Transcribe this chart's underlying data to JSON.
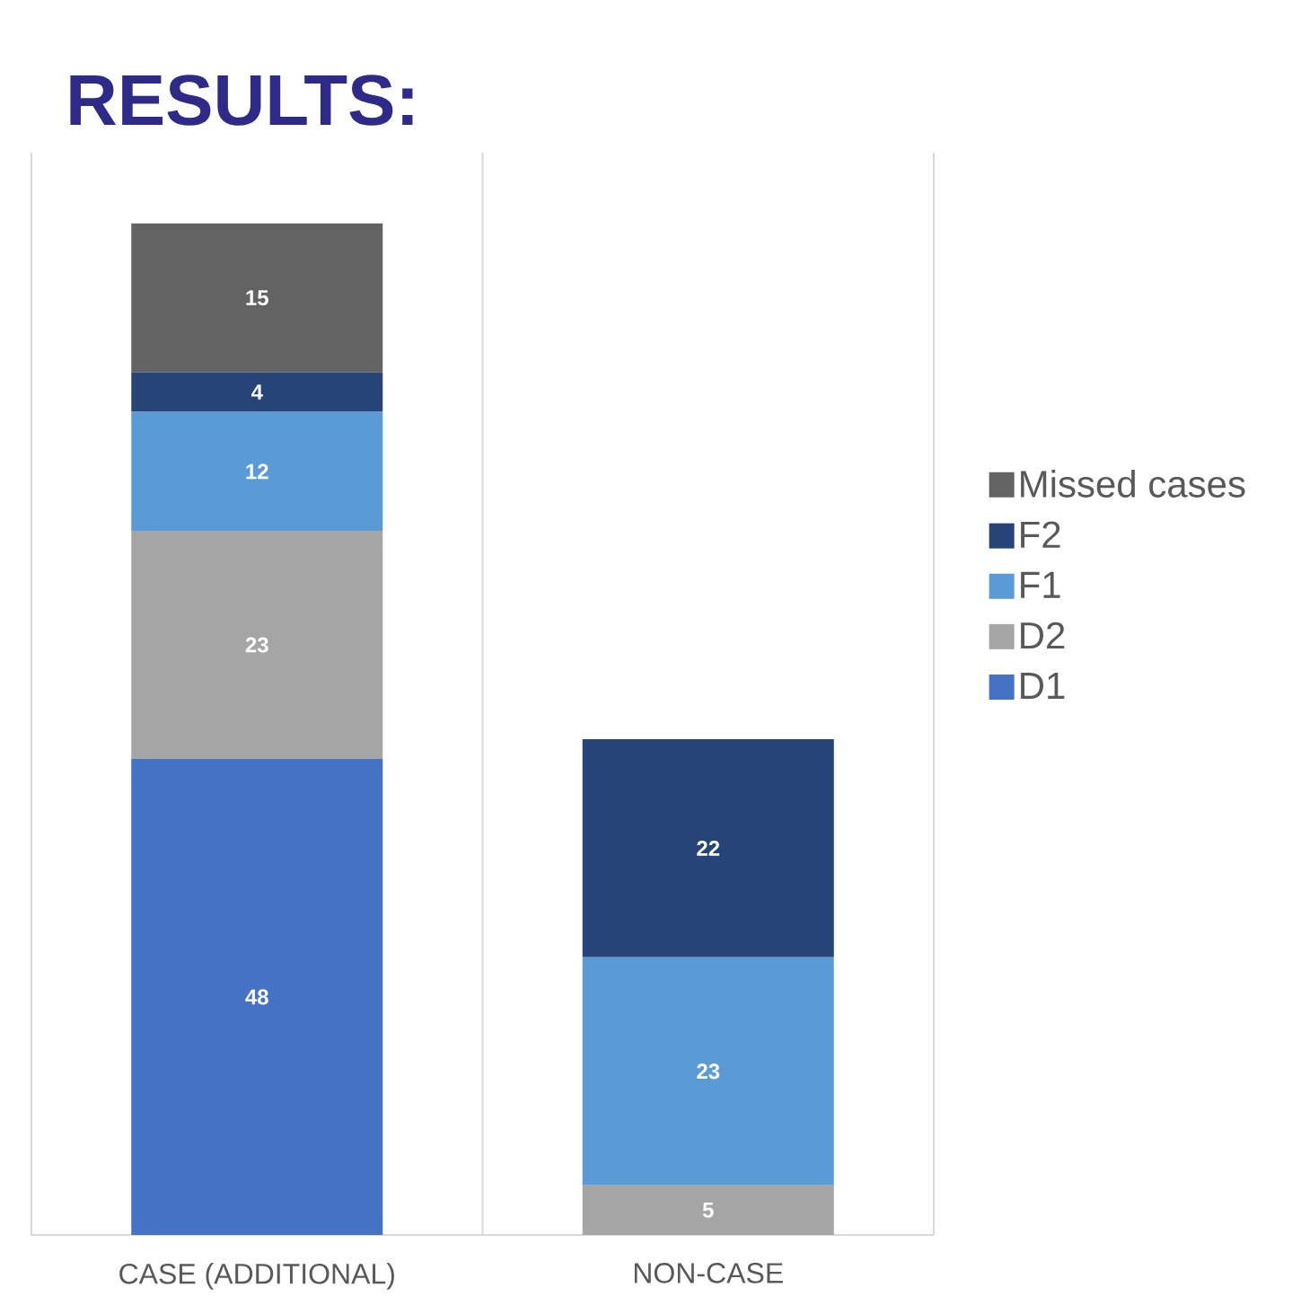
{
  "chart_data": {
    "type": "bar",
    "title": "RESULTS:",
    "stacked": true,
    "categories": [
      "CASE (ADDITIONAL)",
      "NON-CASE"
    ],
    "series": [
      {
        "name": "D1",
        "color": "#4472c4",
        "values": [
          48,
          0
        ],
        "value_labels": [
          "48",
          null
        ]
      },
      {
        "name": "D2",
        "color": "#a5a5a5",
        "values": [
          23,
          5
        ],
        "value_labels": [
          "23",
          "5"
        ]
      },
      {
        "name": "F1",
        "color": "#5b9bd5",
        "values": [
          12,
          23
        ],
        "value_labels": [
          "12",
          "23"
        ]
      },
      {
        "name": "F2",
        "color": "#264478",
        "values": [
          4,
          22
        ],
        "value_labels": [
          "4",
          "22"
        ]
      },
      {
        "name": "Missed cases",
        "color": "#636363",
        "values": [
          15,
          0
        ],
        "value_labels": [
          "15",
          null
        ]
      }
    ],
    "grid": "x",
    "legend": "right",
    "tick_labels": "x"
  }
}
